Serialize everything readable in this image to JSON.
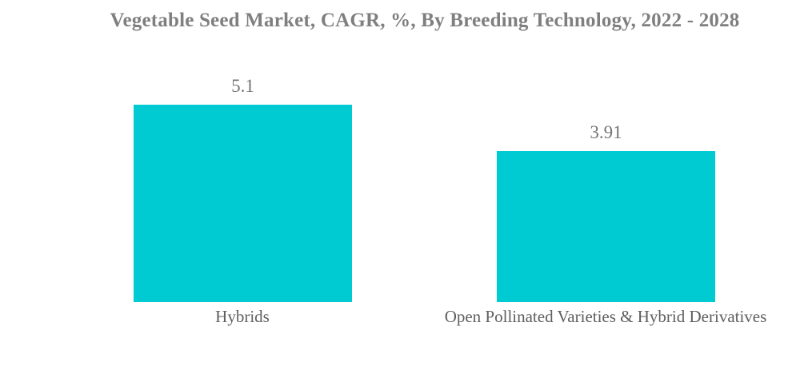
{
  "page": {
    "background": "#ffffff"
  },
  "chart_data": {
    "type": "bar",
    "title": "Vegetable Seed Market, CAGR, %, By Breeding Technology, 2022 - 2028",
    "categories": [
      "Hybrids",
      "Open Pollinated Varieties & Hybrid Derivatives"
    ],
    "values": [
      5.1,
      3.91
    ],
    "value_labels": [
      "5.1",
      "3.91"
    ],
    "xlabel": "",
    "ylabel": "",
    "ylim": [
      0,
      5.6
    ],
    "grid": false,
    "legend": "none",
    "bar_color": "#00CBD2",
    "title_color": "#7f7f7f",
    "value_label_color": "#757575",
    "category_label_color": "#5f5f5f",
    "background_color": "#ffffff"
  }
}
